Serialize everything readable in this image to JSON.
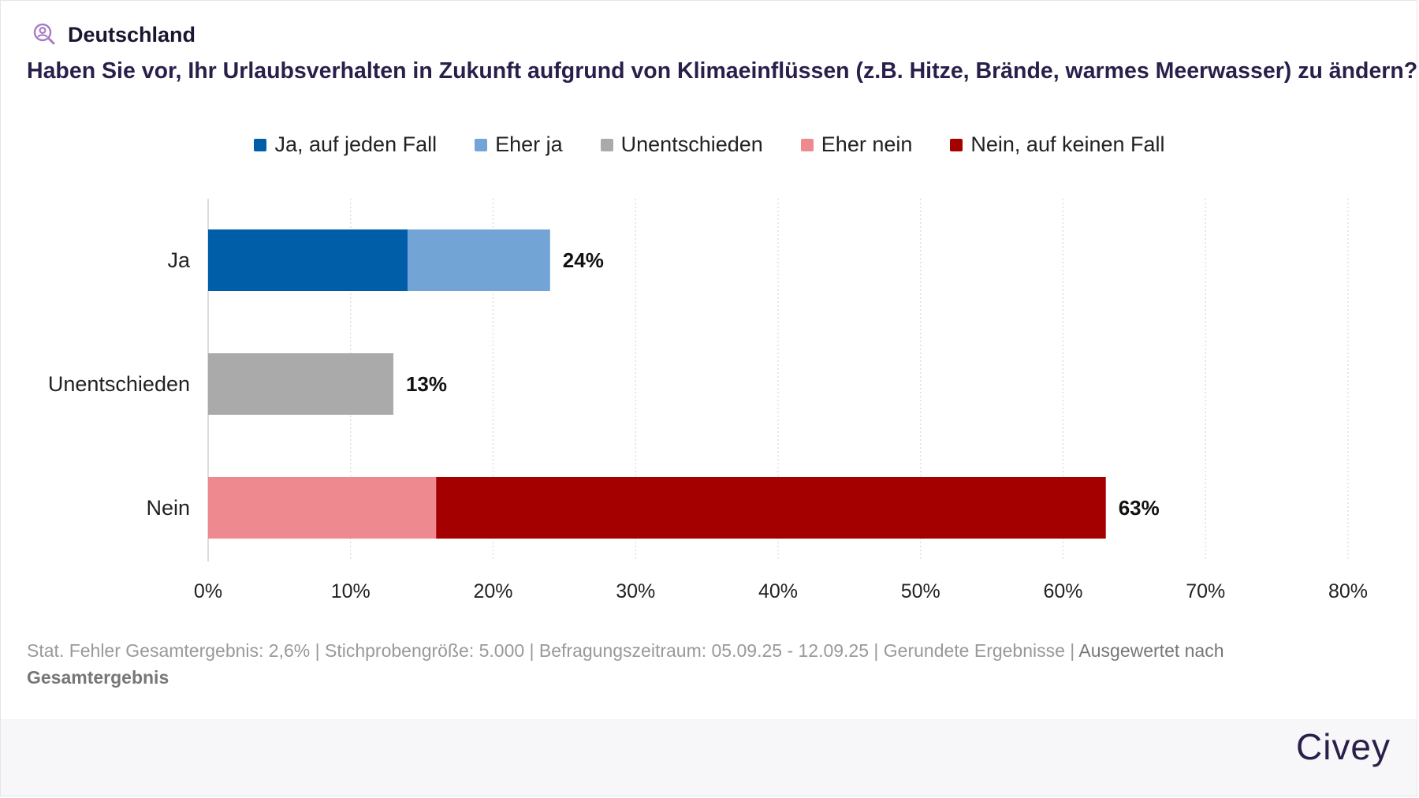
{
  "header": {
    "region": "Deutschland",
    "region_icon": "search-user-icon",
    "question": "Haben Sie vor, Ihr Urlaubsverhalten in Zukunft aufgrund von Klimaeinflüssen (z.B. Hitze, Brände, warmes Meerwasser) zu ändern?"
  },
  "legend": [
    {
      "label": "Ja, auf jeden Fall",
      "color": "#005ea8"
    },
    {
      "label": "Eher ja",
      "color": "#72a4d6"
    },
    {
      "label": "Unentschieden",
      "color": "#aaaaaa"
    },
    {
      "label": "Eher nein",
      "color": "#ef8990"
    },
    {
      "label": "Nein, auf keinen Fall",
      "color": "#a50000"
    }
  ],
  "chart_data": {
    "type": "bar",
    "orientation": "horizontal",
    "stacked": true,
    "categories": [
      "Ja",
      "Unentschieden",
      "Nein"
    ],
    "series": [
      {
        "name": "Ja, auf jeden Fall",
        "color": "#005ea8",
        "values": [
          14,
          0,
          0
        ]
      },
      {
        "name": "Eher ja",
        "color": "#72a4d6",
        "values": [
          10,
          0,
          0
        ]
      },
      {
        "name": "Unentschieden",
        "color": "#aaaaaa",
        "values": [
          0,
          13,
          0
        ]
      },
      {
        "name": "Eher nein",
        "color": "#ef8990",
        "values": [
          0,
          0,
          16
        ]
      },
      {
        "name": "Nein, auf keinen Fall",
        "color": "#a50000",
        "values": [
          0,
          0,
          47
        ]
      }
    ],
    "totals": [
      "24%",
      "13%",
      "63%"
    ],
    "xlim": [
      0,
      80
    ],
    "xticks": [
      "0%",
      "10%",
      "20%",
      "30%",
      "40%",
      "50%",
      "60%",
      "70%",
      "80%"
    ],
    "grid": "vertical-dotted",
    "legend_position": "top-center"
  },
  "footer": {
    "note_main": "Stat. Fehler Gesamtergebnis: 2,6% | Stichprobengröße: 5.000 | Befragungszeitraum: 05.09.25 - 12.09.25 | Gerundete Ergebnisse | ",
    "note_eval": "Ausgewertet nach",
    "note_eval_bold": "Gesamtergebnis",
    "brand": "Civey"
  }
}
